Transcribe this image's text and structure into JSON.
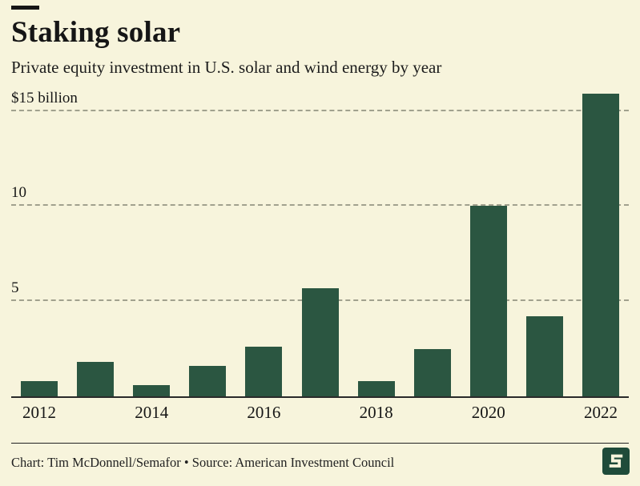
{
  "page": {
    "background": "#f7f4dc",
    "text_color": "#161616",
    "accent_green": "#2b5641"
  },
  "header": {
    "title": "Staking solar",
    "subtitle": "Private equity investment in U.S. solar and wind energy by year"
  },
  "chart_data": {
    "type": "bar",
    "title": "Staking solar",
    "subtitle": "Private equity investment in U.S. solar and wind energy by year",
    "unit": "billion USD",
    "categories": [
      "2012",
      "2013",
      "2014",
      "2015",
      "2016",
      "2017",
      "2018",
      "2019",
      "2020",
      "2021",
      "2022"
    ],
    "values": [
      0.8,
      1.8,
      0.6,
      1.6,
      2.6,
      5.7,
      0.8,
      2.5,
      10.0,
      4.2,
      15.9
    ],
    "ylim": [
      0,
      16.2
    ],
    "gridlines": [
      5,
      10,
      15
    ],
    "y_tick_labels": [
      "5",
      "10",
      "$15 billion"
    ],
    "x_tick_labels": [
      "2012",
      "",
      "2014",
      "",
      "2016",
      "",
      "2018",
      "",
      "2020",
      "",
      "2022"
    ],
    "grid": "dashed horizontal",
    "legend": "none",
    "bar_color": "#2b5641"
  },
  "footer": {
    "credit": "Chart: Tim McDonnell/Semafor • Source: American Investment Council",
    "logo_name": "semafor-logo"
  }
}
